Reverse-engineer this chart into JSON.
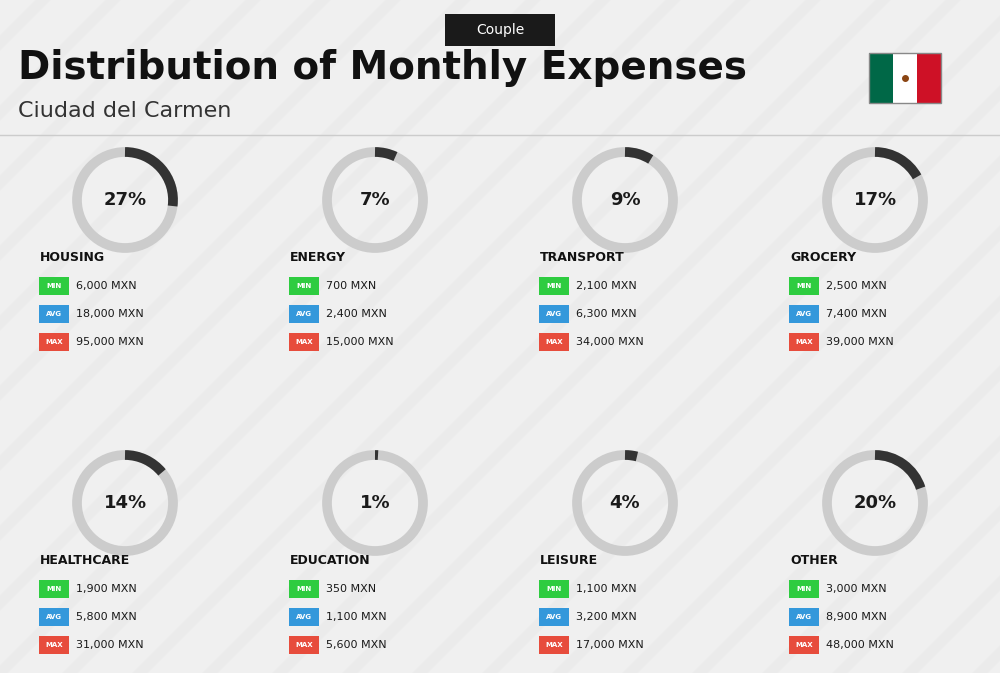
{
  "title": "Distribution of Monthly Expenses",
  "subtitle": "Ciudad del Carmen",
  "badge": "Couple",
  "background_color": "#f0f0f0",
  "categories": [
    {
      "name": "HOUSING",
      "percent": 27,
      "min": "6,000 MXN",
      "avg": "18,000 MXN",
      "max": "95,000 MXN",
      "row": 0,
      "col": 0
    },
    {
      "name": "ENERGY",
      "percent": 7,
      "min": "700 MXN",
      "avg": "2,400 MXN",
      "max": "15,000 MXN",
      "row": 0,
      "col": 1
    },
    {
      "name": "TRANSPORT",
      "percent": 9,
      "min": "2,100 MXN",
      "avg": "6,300 MXN",
      "max": "34,000 MXN",
      "row": 0,
      "col": 2
    },
    {
      "name": "GROCERY",
      "percent": 17,
      "min": "2,500 MXN",
      "avg": "7,400 MXN",
      "max": "39,000 MXN",
      "row": 0,
      "col": 3
    },
    {
      "name": "HEALTHCARE",
      "percent": 14,
      "min": "1,900 MXN",
      "avg": "5,800 MXN",
      "max": "31,000 MXN",
      "row": 1,
      "col": 0
    },
    {
      "name": "EDUCATION",
      "percent": 1,
      "min": "350 MXN",
      "avg": "1,100 MXN",
      "max": "5,600 MXN",
      "row": 1,
      "col": 1
    },
    {
      "name": "LEISURE",
      "percent": 4,
      "min": "1,100 MXN",
      "avg": "3,200 MXN",
      "max": "17,000 MXN",
      "row": 1,
      "col": 2
    },
    {
      "name": "OTHER",
      "percent": 20,
      "min": "3,000 MXN",
      "avg": "8,900 MXN",
      "max": "48,000 MXN",
      "row": 1,
      "col": 3
    }
  ],
  "color_min": "#2ecc40",
  "color_avg": "#3498db",
  "color_max": "#e74c3c",
  "arc_color": "#333333",
  "arc_bg_color": "#cccccc",
  "flag_green": "#006847",
  "flag_white": "#ffffff",
  "flag_red": "#ce1126"
}
